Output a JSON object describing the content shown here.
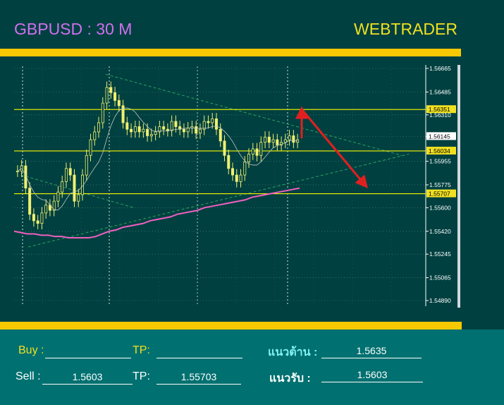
{
  "header": {
    "symbol": "GBPUSD : 30 M",
    "brand": "WEBTRADER"
  },
  "chart_data": {
    "type": "candlestick",
    "ylim": [
      1.548,
      1.567
    ],
    "y_ticks": [
      "1.56665",
      "1.56485",
      "1.56310",
      "1.56145",
      "1.55955",
      "1.55775",
      "1.55600",
      "1.55420",
      "1.55245",
      "1.55065",
      "1.54890"
    ],
    "levels": [
      {
        "label": "1.56351",
        "value": 1.56351,
        "color": "#f8f800"
      },
      {
        "label": "1.56034",
        "value": 1.56034,
        "color": "#f8f800"
      },
      {
        "label": "1.55707",
        "value": 1.55707,
        "color": "#f8f800"
      }
    ],
    "current_price": "1.56145",
    "candle_closes": [
      1.5588,
      1.5592,
      1.5575,
      1.5555,
      1.555,
      1.5548,
      1.5556,
      1.5562,
      1.5558,
      1.5565,
      1.5572,
      1.558,
      1.559,
      1.5585,
      1.5565,
      1.557,
      1.5585,
      1.56,
      1.5612,
      1.5618,
      1.5625,
      1.564,
      1.5652,
      1.5648,
      1.5642,
      1.5638,
      1.5625,
      1.562,
      1.5618,
      1.5622,
      1.5618,
      1.562,
      1.5615,
      1.5616,
      1.5618,
      1.5622,
      1.562,
      1.5619,
      1.5626,
      1.5622,
      1.562,
      1.5618,
      1.5621,
      1.5622,
      1.5617,
      1.562,
      1.5626,
      1.5625,
      1.5628,
      1.562,
      1.5611,
      1.56,
      1.559,
      1.5585,
      1.558,
      1.5585,
      1.5595,
      1.5601,
      1.5605,
      1.56,
      1.561,
      1.5614,
      1.561,
      1.5612,
      1.5608,
      1.561,
      1.5612,
      1.5615,
      1.561,
      1.5612
    ],
    "ma_slow": [
      1.5542,
      1.5541,
      1.554,
      1.554,
      1.5539,
      1.5539,
      1.5538,
      1.5538,
      1.5537,
      1.5537,
      1.5537,
      1.5537,
      1.5538,
      1.554,
      1.5542,
      1.5543,
      1.5545,
      1.5546,
      1.5547,
      1.5548,
      1.555,
      1.5551,
      1.5552,
      1.5553,
      1.5555,
      1.5556,
      1.5557,
      1.5558,
      1.556,
      1.5561,
      1.5562,
      1.5563,
      1.5564,
      1.5565,
      1.5566,
      1.5568,
      1.5569,
      1.557,
      1.5571,
      1.5572,
      1.5573,
      1.5574,
      1.5575
    ]
  },
  "form": {
    "buy_label": "Buy :",
    "buy_value": "",
    "buy_tp_label": "TP:",
    "buy_tp_value": "",
    "resistance_label": "แนวต้าน :",
    "resistance_value": "1.5635",
    "sell_label": "Sell :",
    "sell_value": "1.5603",
    "sell_tp_label": "TP:",
    "sell_tp_value": "1.55703",
    "support_label": "แนวรับ :",
    "support_value": "1.5603"
  }
}
